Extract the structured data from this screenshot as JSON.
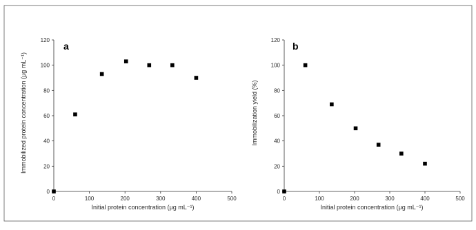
{
  "chart_data": [
    {
      "type": "scatter",
      "panel_label": "a",
      "xlabel": "Initial protein concentration (μg mL⁻¹)",
      "ylabel": "Immobilized protein concentration (μg mL⁻¹)",
      "xlim": [
        0,
        500
      ],
      "ylim": [
        0,
        120
      ],
      "x_ticks": [
        0,
        100,
        200,
        300,
        400,
        500
      ],
      "y_ticks": [
        0,
        20,
        40,
        60,
        80,
        100,
        120
      ],
      "grid": false,
      "legend": "none",
      "marker_color": "#000000",
      "series": [
        {
          "x": [
            0,
            60,
            135,
            203,
            268,
            333,
            400
          ],
          "y": [
            0,
            61,
            93,
            103,
            100,
            100,
            90
          ]
        }
      ]
    },
    {
      "type": "scatter",
      "panel_label": "b",
      "xlabel": "Initial protein concentration (μg mL⁻¹)",
      "ylabel": "Immobilization yield (%)",
      "xlim": [
        0,
        500
      ],
      "ylim": [
        0,
        120
      ],
      "x_ticks": [
        0,
        100,
        200,
        300,
        400,
        500
      ],
      "y_ticks": [
        0,
        20,
        40,
        60,
        80,
        100,
        120
      ],
      "grid": false,
      "legend": "none",
      "marker_color": "#000000",
      "series": [
        {
          "x": [
            0,
            60,
            135,
            203,
            268,
            333,
            400
          ],
          "y": [
            0,
            100,
            69,
            50,
            37,
            30,
            22
          ]
        }
      ]
    }
  ]
}
